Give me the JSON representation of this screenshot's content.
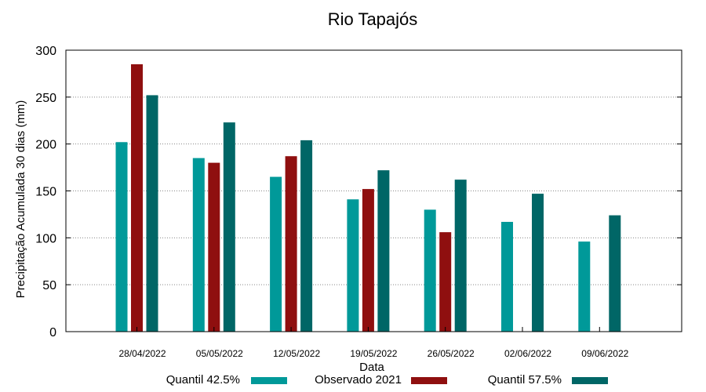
{
  "chart_data": {
    "type": "bar",
    "title": "Rio Tapajós",
    "xlabel": "Data",
    "ylabel": "Precipitação Acumulada 30 dias (mm)",
    "ylim": [
      0,
      300
    ],
    "yticks": [
      0,
      50,
      100,
      150,
      200,
      250,
      300
    ],
    "grid": true,
    "legend_position": "bottom",
    "categories": [
      "28/04/2022",
      "05/05/2022",
      "12/05/2022",
      "19/05/2022",
      "26/05/2022",
      "02/06/2022",
      "09/06/2022"
    ],
    "series": [
      {
        "name": "Quantil 42.5%",
        "color": "#009999",
        "values": [
          202,
          185,
          165,
          141,
          130,
          117,
          96
        ]
      },
      {
        "name": "Observado 2021",
        "color": "#8f0f0f",
        "values": [
          285,
          180,
          187,
          152,
          106,
          null,
          null
        ]
      },
      {
        "name": "Quantil 57.5%",
        "color": "#006666",
        "values": [
          252,
          223,
          204,
          172,
          162,
          147,
          124
        ]
      }
    ]
  }
}
